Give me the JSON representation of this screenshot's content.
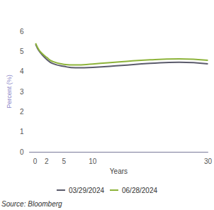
{
  "chart_data": {
    "type": "line",
    "x_label": "Years",
    "y_label": "Percent (%)",
    "source": "Source: Bloomberg",
    "x": [
      0.08,
      0.25,
      0.5,
      1,
      2,
      3,
      5,
      7,
      10,
      15,
      20,
      25,
      30
    ],
    "series": [
      {
        "name": "03/29/2024",
        "color": "#5b5b6b",
        "values": [
          5.35,
          5.25,
          5.1,
          4.9,
          4.6,
          4.4,
          4.25,
          4.18,
          4.2,
          4.3,
          4.4,
          4.46,
          4.38
        ]
      },
      {
        "name": "06/28/2024",
        "color": "#8db33a",
        "values": [
          5.4,
          5.3,
          5.15,
          4.95,
          4.7,
          4.5,
          4.35,
          4.32,
          4.37,
          4.48,
          4.58,
          4.62,
          4.55
        ]
      }
    ],
    "xlim": [
      -1,
      30
    ],
    "xticks": [
      0,
      2,
      5,
      10,
      30
    ],
    "ylim": [
      0,
      6
    ],
    "yticks": [
      0,
      1,
      2,
      3,
      4,
      5,
      6
    ],
    "grid": false,
    "legend": "bottom"
  }
}
